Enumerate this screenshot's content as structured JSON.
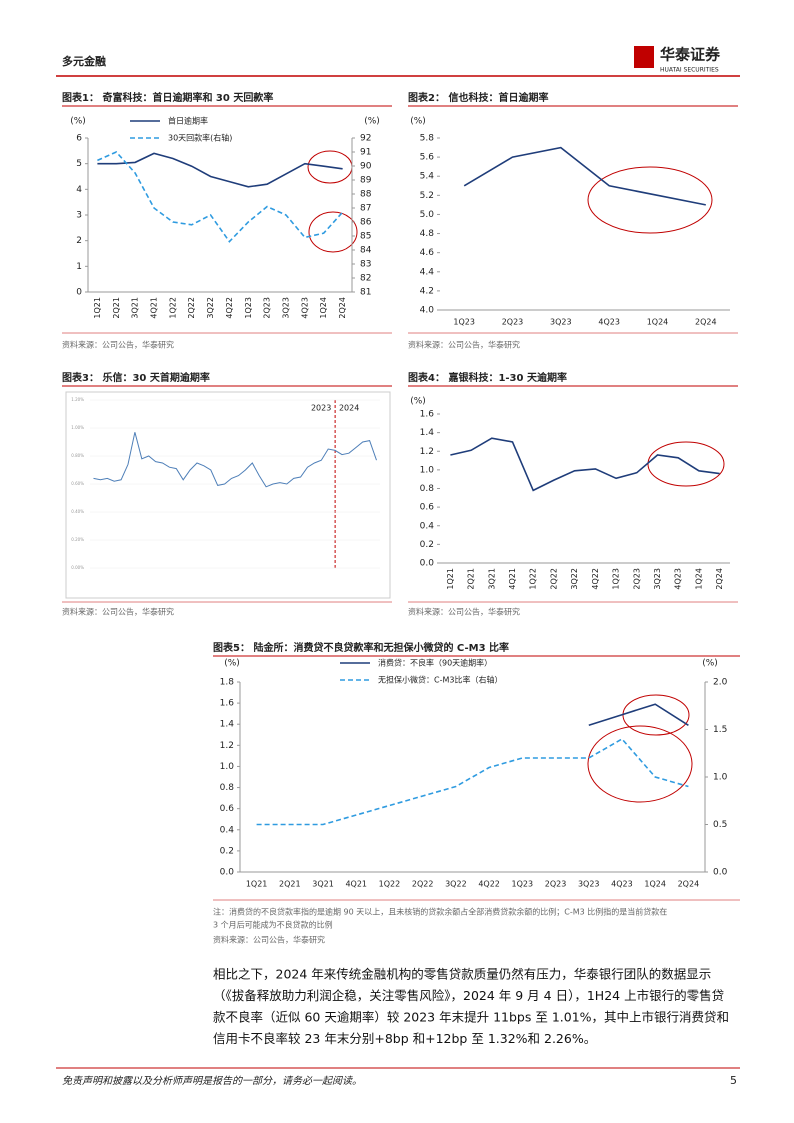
{
  "header": {
    "section": "多元金融",
    "logo": "华泰证券",
    "logo_en": "HUATAI SECURITIES"
  },
  "chart_data": [
    {
      "type": "line",
      "title": "图表1： 奇富科技：首日逾期率和 30 天回款率",
      "y_unit": "(%)",
      "y2_unit": "(%)",
      "categories": [
        "1Q21",
        "2Q21",
        "3Q21",
        "4Q21",
        "1Q22",
        "2Q22",
        "3Q22",
        "4Q22",
        "1Q23",
        "2Q23",
        "3Q23",
        "4Q23",
        "1Q24",
        "2Q24"
      ],
      "series": [
        {
          "name": "首日逾期率",
          "color": "#1f3d7a",
          "style": "solid",
          "values": [
            5.0,
            5.0,
            5.05,
            5.4,
            5.2,
            4.9,
            4.5,
            4.3,
            4.1,
            4.2,
            4.6,
            5.0,
            4.9,
            4.8
          ]
        },
        {
          "name": "30天回款率(右轴)",
          "color": "#2f9be0",
          "style": "dashed",
          "axis": "y2",
          "values": [
            90.4,
            91.0,
            89.5,
            87.0,
            86.0,
            85.8,
            86.5,
            84.6,
            86.0,
            87.1,
            86.5,
            84.9,
            85.2,
            86.7
          ]
        }
      ],
      "ylim": [
        0,
        6
      ],
      "yticks": [
        0,
        1,
        2,
        3,
        4,
        5,
        6
      ],
      "y2lim": [
        81,
        92
      ],
      "y2ticks": [
        81,
        82,
        83,
        84,
        85,
        86,
        87,
        88,
        89,
        90,
        91,
        92
      ],
      "source": "资料来源：公司公告，华泰研究"
    },
    {
      "type": "line",
      "title": "图表2： 信也科技：首日逾期率",
      "y_unit": "(%)",
      "categories": [
        "1Q23",
        "2Q23",
        "3Q23",
        "4Q23",
        "1Q24",
        "2Q24"
      ],
      "series": [
        {
          "color": "#1f3d7a",
          "style": "solid",
          "values": [
            5.3,
            5.6,
            5.7,
            5.3,
            5.2,
            5.1
          ]
        }
      ],
      "ylim": [
        4,
        5.8
      ],
      "yticks": [
        {
          "value": 4,
          "label": "4.0"
        },
        4.2,
        4.4,
        4.6,
        4.8,
        {
          "value": 5,
          "label": "5.0"
        },
        5.2,
        5.4,
        5.6,
        5.8
      ],
      "source": "资料来源：公司公告，华泰研究"
    },
    {
      "type": "line",
      "title": "图表3： 乐信：30 天首期逾期率",
      "annotations": [
        "2023",
        "2024"
      ],
      "categories": [
        null,
        null,
        null,
        null,
        null,
        null,
        null,
        null,
        null,
        null,
        null,
        null,
        null,
        null,
        null,
        null,
        null,
        null,
        null,
        null,
        null,
        null,
        null,
        null,
        null,
        null,
        null,
        null,
        null,
        null,
        null,
        null,
        null,
        null,
        null,
        null,
        null,
        null,
        null,
        null,
        null,
        null
      ],
      "series": [
        {
          "color": "#4e7fb8",
          "style": "solid",
          "values": [
            0.64,
            0.63,
            0.64,
            0.62,
            0.63,
            0.74,
            0.97,
            0.78,
            0.8,
            0.76,
            0.75,
            0.72,
            0.71,
            0.63,
            0.7,
            0.75,
            0.73,
            0.7,
            0.59,
            0.6,
            0.64,
            0.66,
            0.7,
            0.75,
            0.66,
            0.58,
            0.6,
            0.61,
            0.6,
            0.64,
            0.65,
            0.72,
            0.75,
            0.77,
            0.85,
            0.84,
            0.81,
            0.82,
            0.86,
            0.9,
            0.91,
            0.77
          ]
        }
      ],
      "ylim": [
        0,
        1.2
      ],
      "yticks": [
        {
          "value": 0,
          "label": "0.00%"
        },
        {
          "value": 0.2,
          "label": "0.20%"
        },
        {
          "value": 0.4,
          "label": "0.40%"
        },
        {
          "value": 0.6,
          "label": "0.60%"
        },
        {
          "value": 0.8,
          "label": "0.80%"
        },
        {
          "value": 1,
          "label": "1.00%"
        },
        {
          "value": 1.2,
          "label": "1.20%"
        }
      ],
      "source": "资料来源：公司公告，华泰研究"
    },
    {
      "type": "line",
      "title": "图表4： 嘉银科技：1-30 天逾期率",
      "y_unit": "(%)",
      "categories": [
        "1Q21",
        "2Q21",
        "3Q21",
        "4Q21",
        "1Q22",
        "2Q22",
        "3Q22",
        "4Q22",
        "1Q23",
        "2Q23",
        "3Q23",
        "4Q23",
        "1Q24",
        "2Q24"
      ],
      "series": [
        {
          "color": "#1f3d7a",
          "style": "solid",
          "values": [
            1.16,
            1.21,
            1.34,
            1.3,
            0.78,
            0.89,
            0.99,
            1.01,
            0.91,
            0.97,
            1.16,
            1.13,
            0.99,
            0.96
          ]
        }
      ],
      "ylim": [
        0,
        1.6
      ],
      "yticks": [
        {
          "value": 0,
          "label": "0.0"
        },
        0.2,
        0.4,
        0.6,
        0.8,
        {
          "value": 1,
          "label": "1.0"
        },
        1.2,
        1.4,
        1.6
      ],
      "source": "资料来源：公司公告，华泰研究"
    },
    {
      "type": "line",
      "title": "图表5： 陆金所：消费贷不良贷款率和无担保小微贷的 C-M3 比率",
      "y_unit": "(%)",
      "y2_unit": "(%)",
      "categories": [
        "1Q21",
        "2Q21",
        "3Q21",
        "4Q21",
        "1Q22",
        "2Q22",
        "3Q22",
        "4Q22",
        "1Q23",
        "2Q23",
        "3Q23",
        "4Q23",
        "1Q24",
        "2Q24"
      ],
      "series": [
        {
          "name": "消费贷：不良率（90天逾期率）",
          "color": "#1f3d7a",
          "style": "solid",
          "values": [
            null,
            null,
            null,
            null,
            null,
            null,
            null,
            null,
            null,
            null,
            1.39,
            1.49,
            1.59,
            1.39
          ]
        },
        {
          "name": "无担保小微贷：C-M3比率（右轴）",
          "color": "#2f9be0",
          "style": "dashed",
          "axis": "y2",
          "values": [
            0.5,
            0.5,
            0.5,
            0.6,
            0.7,
            0.8,
            0.9,
            1.1,
            1.2,
            1.2,
            1.2,
            1.4,
            1.0,
            0.9
          ]
        }
      ],
      "ylim": [
        0,
        1.8
      ],
      "yticks": [
        {
          "value": 0,
          "label": "0.0"
        },
        0.2,
        0.4,
        0.6,
        0.8,
        {
          "value": 1,
          "label": "1.0"
        },
        1.2,
        1.4,
        1.6,
        1.8
      ],
      "y2lim": [
        0,
        2
      ],
      "y2ticks": [
        {
          "value": 0,
          "label": "0.0"
        },
        0.5,
        {
          "value": 1,
          "label": "1.0"
        },
        1.5,
        {
          "value": 2,
          "label": "2.0"
        }
      ],
      "note": [
        "注：消费贷的不良贷款率指的是逾期 90 天以上，且未核销的贷款余额占全部消费贷款余额的比例；C-M3 比例指的是当前贷款在",
        "3 个月后可能成为不良贷款的比例"
      ],
      "source": "资料来源：公司公告，华泰研究"
    }
  ],
  "body": [
    "相比之下，2024 年来传统金融机构的零售贷款质量仍然有压力，华泰银行团队的数据显示",
    "（《拔备释放助力利润企稳，关注零售风险》，2024 年 9 月 4 日），1H24 上市银行的零售贷",
    "款不良率（近似 60 天逾期率）较 2023 年末提升 11bps 至 1.01%，其中上市银行消费贷和",
    "信用卡不良率较 23 年末分别+8bp 和+12bp 至 1.32%和 2.26%。"
  ],
  "footer": {
    "disclaimer": "免责声明和披露以及分析师声明是报告的一部分，请务必一起阅读。",
    "page": "5"
  }
}
